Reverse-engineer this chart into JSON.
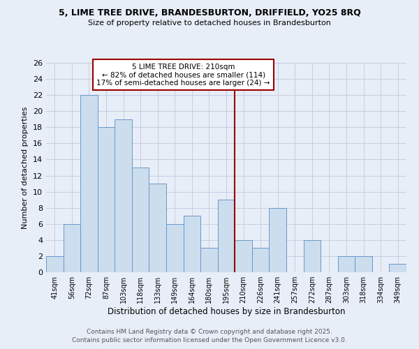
{
  "title1": "5, LIME TREE DRIVE, BRANDESBURTON, DRIFFIELD, YO25 8RQ",
  "title2": "Size of property relative to detached houses in Brandesburton",
  "xlabel": "Distribution of detached houses by size in Brandesburton",
  "ylabel": "Number of detached properties",
  "bins": [
    "41sqm",
    "56sqm",
    "72sqm",
    "87sqm",
    "103sqm",
    "118sqm",
    "133sqm",
    "149sqm",
    "164sqm",
    "180sqm",
    "195sqm",
    "210sqm",
    "226sqm",
    "241sqm",
    "257sqm",
    "272sqm",
    "287sqm",
    "303sqm",
    "318sqm",
    "334sqm",
    "349sqm"
  ],
  "values": [
    2,
    6,
    22,
    18,
    19,
    13,
    11,
    6,
    7,
    3,
    9,
    4,
    3,
    8,
    0,
    4,
    0,
    2,
    2,
    0,
    1
  ],
  "bar_color": "#ccdded",
  "bar_edge_color": "#6699cc",
  "highlight_line_color": "#990000",
  "annotation_title": "5 LIME TREE DRIVE: 210sqm",
  "annotation_line1": "← 82% of detached houses are smaller (114)",
  "annotation_line2": "17% of semi-detached houses are larger (24) →",
  "annotation_box_edge": "#990000",
  "ylim": [
    0,
    26
  ],
  "yticks": [
    0,
    2,
    4,
    6,
    8,
    10,
    12,
    14,
    16,
    18,
    20,
    22,
    24,
    26
  ],
  "footer1": "Contains HM Land Registry data © Crown copyright and database right 2025.",
  "footer2": "Contains public sector information licensed under the Open Government Licence v3.0.",
  "background_color": "#e8eef8",
  "grid_color": "#c5cfe0"
}
